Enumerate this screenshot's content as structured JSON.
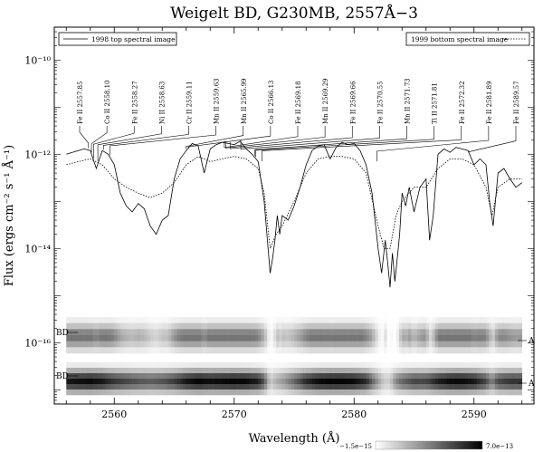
{
  "chart_data": {
    "type": "line",
    "title": "Weigelt BD, G230MB, 2557Å−3",
    "xlabel": "Wavelength (Å)",
    "ylabel": "Flux (ergs cm⁻² s⁻¹ Å⁻¹)",
    "xlim": [
      2555,
      2595
    ],
    "ylim": [
      5e-18,
      5e-10
    ],
    "yscale": "log",
    "x_ticks": [
      2560,
      2570,
      2580,
      2590
    ],
    "y_ticks": [
      {
        "value": 1e-10,
        "label": "10⁻¹⁰"
      },
      {
        "value": 1e-12,
        "label": "10⁻¹²"
      },
      {
        "value": 1e-14,
        "label": "10⁻¹⁴"
      },
      {
        "value": 1e-16,
        "label": "10⁻¹⁶"
      }
    ],
    "legend": [
      {
        "label": "1998 top spectral image",
        "style": "solid",
        "placement": "top-left"
      },
      {
        "label": "1999 bottom spectral image",
        "style": "dotted",
        "placement": "top-right"
      }
    ],
    "line_labels": [
      {
        "label": "Fe II 2557.85",
        "wavelength": 2557.85
      },
      {
        "label": "Co II 2558.10",
        "wavelength": 2558.1
      },
      {
        "label": "Fe II 2558.27",
        "wavelength": 2558.27
      },
      {
        "label": "Ni II 2558.63",
        "wavelength": 2558.63
      },
      {
        "label": "Cr II 2559.11",
        "wavelength": 2559.11
      },
      {
        "label": "Mn II 2559.63",
        "wavelength": 2559.63
      },
      {
        "label": "Mn II 2565.99",
        "wavelength": 2565.99
      },
      {
        "label": "Co II 2566.13",
        "wavelength": 2566.13
      },
      {
        "label": "Fe II 2569.18",
        "wavelength": 2569.18
      },
      {
        "label": "Mn II 2569.29",
        "wavelength": 2569.29
      },
      {
        "label": "Fe II 2569.66",
        "wavelength": 2569.66
      },
      {
        "label": "Fe II 2570.55",
        "wavelength": 2570.55
      },
      {
        "label": "Mn II 2571.73",
        "wavelength": 2571.73
      },
      {
        "label": "Ti II 2571.81",
        "wavelength": 2571.81
      },
      {
        "label": "Fe II 2572.32",
        "wavelength": 2572.32
      },
      {
        "label": "Fe II 2581.89",
        "wavelength": 2581.89
      },
      {
        "label": "Fe II 2589.57",
        "wavelength": 2589.57
      }
    ],
    "series": [
      {
        "style": "solid",
        "x": [
          2556.0,
          2556.5,
          2557.0,
          2557.5,
          2558.0,
          2558.5,
          2559.0,
          2559.5,
          2560.0,
          2560.5,
          2561.0,
          2561.5,
          2562.0,
          2562.5,
          2563.0,
          2563.5,
          2564.0,
          2564.5,
          2565.0,
          2565.5,
          2566.0,
          2566.5,
          2567.0,
          2567.5,
          2568.0,
          2568.5,
          2569.0,
          2569.5,
          2570.0,
          2570.5,
          2571.0,
          2571.5,
          2572.0,
          2572.5,
          2573.0,
          2573.2,
          2573.4,
          2573.6,
          2573.8,
          2574.0,
          2574.5,
          2575.0,
          2575.5,
          2576.0,
          2576.5,
          2577.0,
          2577.5,
          2578.0,
          2578.5,
          2579.0,
          2579.5,
          2580.0,
          2580.5,
          2581.0,
          2581.5,
          2582.0,
          2582.3,
          2582.6,
          2582.8,
          2583.0,
          2583.2,
          2583.4,
          2583.6,
          2583.8,
          2584.0,
          2584.3,
          2584.6,
          2585.0,
          2585.5,
          2586.0,
          2586.3,
          2586.6,
          2587.0,
          2587.5,
          2588.0,
          2588.5,
          2589.0,
          2589.5,
          2590.0,
          2590.5,
          2591.0,
          2591.3,
          2591.6,
          2592.0,
          2592.5,
          2593.0,
          2593.5,
          2594.0
        ],
        "y": [
          1e-12,
          1.1e-12,
          1.2e-12,
          1.3e-12,
          1.2e-12,
          5e-13,
          1.2e-12,
          1e-12,
          6e-13,
          1.5e-13,
          8e-14,
          6e-14,
          9e-14,
          7e-14,
          3e-14,
          2e-14,
          4e-14,
          5e-14,
          3e-13,
          8e-13,
          1.2e-12,
          1.7e-12,
          1.5e-12,
          4e-13,
          1.3e-12,
          1.6e-12,
          1.8e-12,
          1.7e-12,
          1.6e-12,
          1.9e-12,
          1.3e-12,
          1e-12,
          7e-13,
          1e-13,
          3e-15,
          6e-15,
          1.5e-14,
          5e-14,
          2e-14,
          5e-14,
          4e-14,
          8e-14,
          2e-13,
          6e-13,
          1.2e-12,
          1.5e-12,
          1.6e-12,
          8e-13,
          1.4e-12,
          1.8e-12,
          1.6e-12,
          1.7e-12,
          1.2e-12,
          6e-13,
          1.5e-13,
          1e-14,
          3e-15,
          1.5e-14,
          5e-15,
          1.5e-15,
          8e-15,
          2e-15,
          6e-15,
          2e-14,
          1.5e-13,
          8e-14,
          2e-13,
          6e-14,
          2e-13,
          3e-13,
          1.5e-14,
          5e-14,
          1e-12,
          1.3e-12,
          1.1e-12,
          1.4e-12,
          1.3e-12,
          1.2e-12,
          6e-13,
          8e-13,
          6e-13,
          1e-13,
          3e-14,
          4e-13,
          5e-13,
          3e-13,
          2e-13,
          2.5e-13
        ]
      },
      {
        "style": "dotted",
        "x": [
          2556.0,
          2557.0,
          2558.0,
          2559.0,
          2560.0,
          2561.0,
          2562.0,
          2563.0,
          2564.0,
          2565.0,
          2566.0,
          2567.0,
          2568.0,
          2569.0,
          2570.0,
          2571.0,
          2572.0,
          2572.5,
          2573.0,
          2573.5,
          2574.0,
          2575.0,
          2576.0,
          2577.0,
          2578.0,
          2579.0,
          2580.0,
          2581.0,
          2582.0,
          2582.5,
          2583.0,
          2583.5,
          2584.0,
          2585.0,
          2586.0,
          2587.0,
          2588.0,
          2589.0,
          2590.0,
          2591.0,
          2591.5,
          2592.0,
          2593.0,
          2594.0
        ],
        "y": [
          6e-13,
          7e-13,
          8e-13,
          6e-13,
          3e-13,
          2e-13,
          1.5e-13,
          1.2e-13,
          1.5e-13,
          2.5e-13,
          6e-13,
          9e-13,
          7e-13,
          8e-13,
          9e-13,
          8e-13,
          5e-13,
          1.5e-13,
          1e-14,
          2e-14,
          3e-14,
          1e-13,
          4e-13,
          8e-13,
          9e-13,
          9e-13,
          8e-13,
          4e-13,
          3e-14,
          1e-14,
          1e-14,
          5e-14,
          1e-13,
          2e-13,
          2e-13,
          5e-13,
          8e-13,
          8e-13,
          6e-13,
          2e-13,
          5e-14,
          2e-13,
          3e-13,
          3e-13
        ]
      }
    ],
    "spectral_images": [
      {
        "label_left": "BD",
        "label_right": "A"
      },
      {
        "label_left": "BD",
        "label_right": "A"
      }
    ],
    "colorbar": {
      "min_label": "−1.5e−15",
      "max_label": "7.0e−13",
      "colors": [
        "#ffffff",
        "#000000"
      ]
    }
  }
}
